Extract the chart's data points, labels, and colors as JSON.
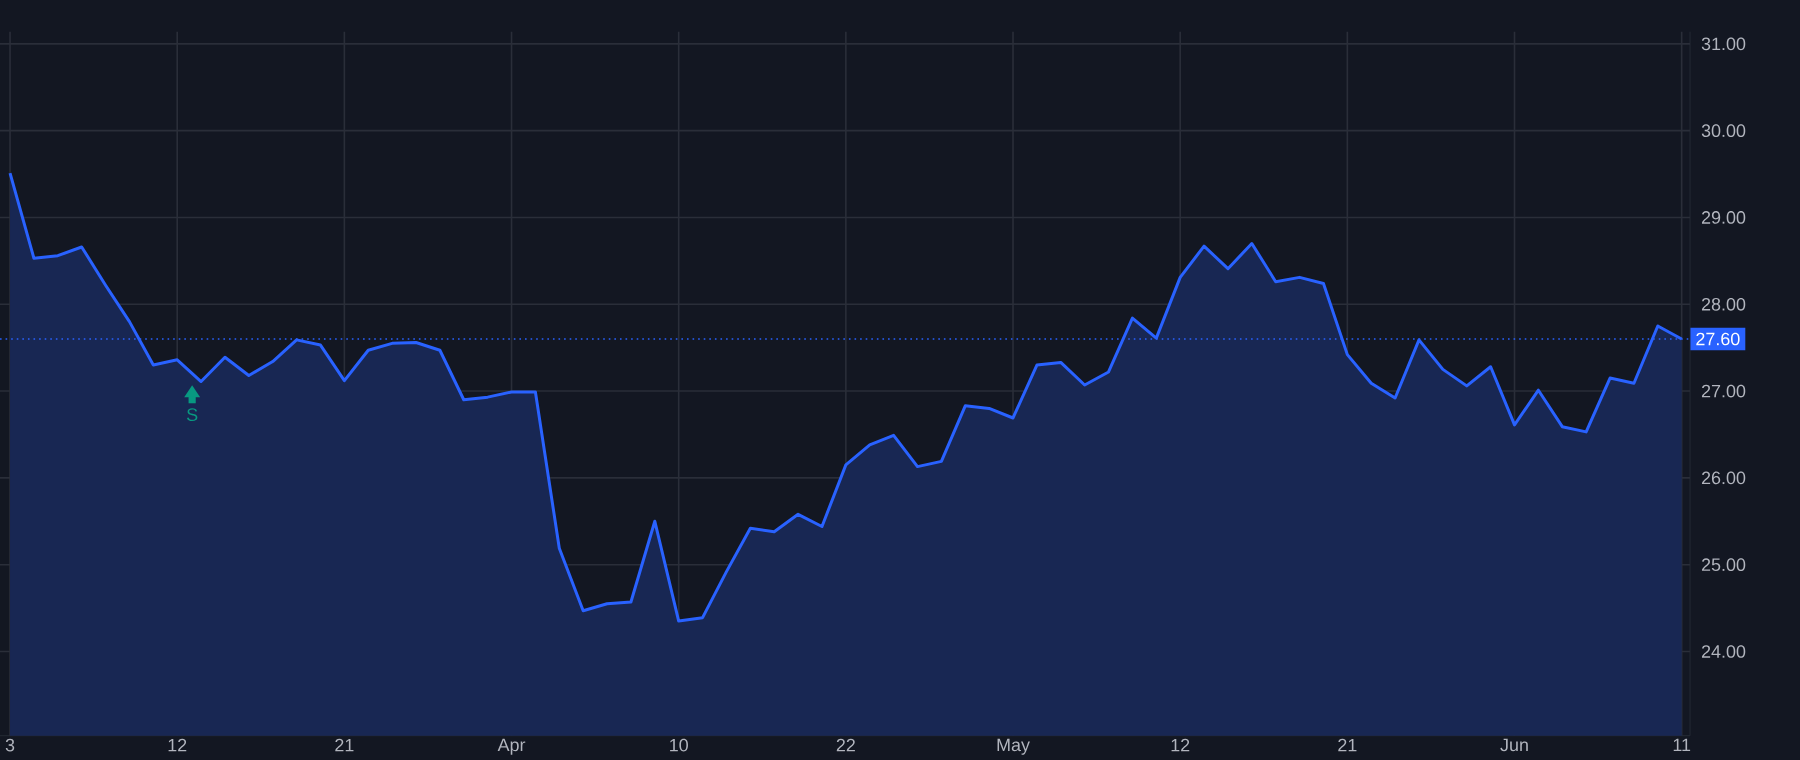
{
  "chart_data": {
    "type": "area",
    "categories": [
      "3",
      null,
      null,
      null,
      null,
      null,
      null,
      "12",
      null,
      null,
      null,
      null,
      null,
      null,
      "21",
      null,
      null,
      null,
      null,
      null,
      null,
      "Apr",
      null,
      null,
      null,
      null,
      null,
      null,
      "10",
      null,
      null,
      null,
      null,
      null,
      null,
      "22",
      null,
      null,
      null,
      null,
      null,
      null,
      "May",
      null,
      null,
      null,
      null,
      null,
      null,
      "12",
      null,
      null,
      null,
      null,
      null,
      null,
      "21",
      null,
      null,
      null,
      null,
      null,
      null,
      "Jun",
      null,
      null,
      null,
      null,
      null,
      null,
      "11"
    ],
    "series": [
      {
        "color": "#2962ff",
        "values": [
          29.51,
          28.53,
          28.56,
          28.66,
          28.22,
          27.8,
          27.3,
          27.36,
          27.11,
          27.39,
          27.18,
          27.34,
          27.59,
          27.53,
          27.12,
          27.47,
          27.55,
          27.56,
          27.47,
          26.9,
          26.93,
          26.99,
          26.99,
          25.19,
          24.47,
          24.55,
          24.57,
          25.5,
          24.35,
          24.39,
          24.92,
          25.42,
          25.38,
          25.58,
          25.44,
          26.15,
          26.38,
          26.49,
          26.13,
          26.19,
          26.83,
          26.8,
          26.69,
          27.3,
          27.33,
          27.07,
          27.22,
          27.84,
          27.61,
          28.31,
          28.67,
          28.41,
          28.7,
          28.26,
          28.31,
          28.24,
          27.42,
          27.09,
          26.92,
          27.59,
          27.25,
          27.06,
          27.28,
          26.61,
          27.01,
          26.59,
          26.53,
          27.15,
          27.09,
          27.75,
          27.6
        ]
      }
    ],
    "ylim": [
      23.03,
      31.14
    ],
    "yticks": [
      {
        "value": 24,
        "label": "24.00"
      },
      {
        "value": 25,
        "label": "25.00"
      },
      {
        "value": 26,
        "label": "26.00"
      },
      {
        "value": 27,
        "label": "27.00"
      },
      {
        "value": 28,
        "label": "28.00"
      },
      {
        "value": 29,
        "label": "29.00"
      },
      {
        "value": 30,
        "label": "30.00"
      },
      {
        "value": 31,
        "label": "31.00"
      }
    ],
    "grid": true,
    "ref_lines": [
      {
        "axis": "y",
        "value": 27.6,
        "label": "27.60",
        "color": "#2962ff",
        "line_style": "dotted"
      }
    ],
    "annotations": [
      "S"
    ]
  }
}
